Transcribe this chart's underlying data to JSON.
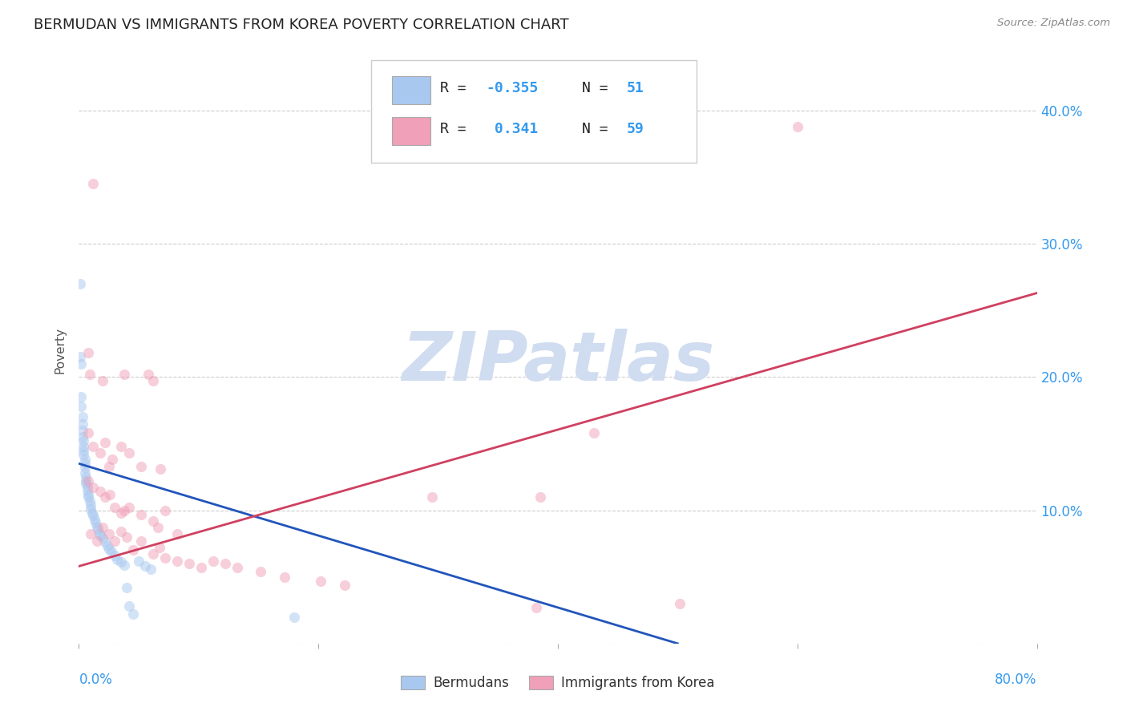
{
  "title": "BERMUDAN VS IMMIGRANTS FROM KOREA POVERTY CORRELATION CHART",
  "source": "Source: ZipAtlas.com",
  "ylabel": "Poverty",
  "ytick_values": [
    0.0,
    0.1,
    0.2,
    0.3,
    0.4
  ],
  "ytick_labels": [
    "",
    "10.0%",
    "20.0%",
    "30.0%",
    "40.0%"
  ],
  "xlim": [
    0.0,
    0.8
  ],
  "ylim": [
    0.0,
    0.44
  ],
  "blue_scatter": [
    [
      0.001,
      0.27
    ],
    [
      0.001,
      0.215
    ],
    [
      0.002,
      0.21
    ],
    [
      0.002,
      0.185
    ],
    [
      0.002,
      0.178
    ],
    [
      0.003,
      0.17
    ],
    [
      0.003,
      0.165
    ],
    [
      0.003,
      0.16
    ],
    [
      0.003,
      0.155
    ],
    [
      0.004,
      0.152
    ],
    [
      0.004,
      0.148
    ],
    [
      0.004,
      0.145
    ],
    [
      0.004,
      0.142
    ],
    [
      0.005,
      0.138
    ],
    [
      0.005,
      0.135
    ],
    [
      0.005,
      0.132
    ],
    [
      0.005,
      0.128
    ],
    [
      0.006,
      0.125
    ],
    [
      0.006,
      0.122
    ],
    [
      0.006,
      0.12
    ],
    [
      0.007,
      0.118
    ],
    [
      0.007,
      0.115
    ],
    [
      0.008,
      0.112
    ],
    [
      0.008,
      0.11
    ],
    [
      0.009,
      0.107
    ],
    [
      0.01,
      0.104
    ],
    [
      0.01,
      0.101
    ],
    [
      0.011,
      0.098
    ],
    [
      0.012,
      0.096
    ],
    [
      0.013,
      0.093
    ],
    [
      0.014,
      0.091
    ],
    [
      0.015,
      0.088
    ],
    [
      0.016,
      0.086
    ],
    [
      0.017,
      0.083
    ],
    [
      0.018,
      0.081
    ],
    [
      0.02,
      0.079
    ],
    [
      0.022,
      0.076
    ],
    [
      0.024,
      0.073
    ],
    [
      0.025,
      0.071
    ],
    [
      0.027,
      0.069
    ],
    [
      0.03,
      0.066
    ],
    [
      0.032,
      0.063
    ],
    [
      0.035,
      0.061
    ],
    [
      0.038,
      0.059
    ],
    [
      0.04,
      0.042
    ],
    [
      0.042,
      0.028
    ],
    [
      0.045,
      0.022
    ],
    [
      0.05,
      0.062
    ],
    [
      0.055,
      0.058
    ],
    [
      0.06,
      0.056
    ],
    [
      0.18,
      0.02
    ]
  ],
  "pink_scatter": [
    [
      0.012,
      0.345
    ],
    [
      0.6,
      0.388
    ],
    [
      0.008,
      0.218
    ],
    [
      0.009,
      0.202
    ],
    [
      0.02,
      0.197
    ],
    [
      0.038,
      0.202
    ],
    [
      0.058,
      0.202
    ],
    [
      0.062,
      0.197
    ],
    [
      0.008,
      0.158
    ],
    [
      0.012,
      0.148
    ],
    [
      0.018,
      0.143
    ],
    [
      0.022,
      0.151
    ],
    [
      0.025,
      0.133
    ],
    [
      0.028,
      0.138
    ],
    [
      0.035,
      0.148
    ],
    [
      0.042,
      0.143
    ],
    [
      0.052,
      0.133
    ],
    [
      0.068,
      0.131
    ],
    [
      0.008,
      0.122
    ],
    [
      0.012,
      0.117
    ],
    [
      0.018,
      0.114
    ],
    [
      0.022,
      0.11
    ],
    [
      0.026,
      0.112
    ],
    [
      0.03,
      0.102
    ],
    [
      0.035,
      0.098
    ],
    [
      0.038,
      0.1
    ],
    [
      0.042,
      0.102
    ],
    [
      0.052,
      0.097
    ],
    [
      0.062,
      0.092
    ],
    [
      0.066,
      0.087
    ],
    [
      0.072,
      0.1
    ],
    [
      0.082,
      0.082
    ],
    [
      0.295,
      0.11
    ],
    [
      0.385,
      0.11
    ],
    [
      0.01,
      0.082
    ],
    [
      0.015,
      0.077
    ],
    [
      0.02,
      0.087
    ],
    [
      0.025,
      0.082
    ],
    [
      0.03,
      0.077
    ],
    [
      0.035,
      0.084
    ],
    [
      0.04,
      0.08
    ],
    [
      0.045,
      0.07
    ],
    [
      0.052,
      0.077
    ],
    [
      0.062,
      0.067
    ],
    [
      0.067,
      0.072
    ],
    [
      0.072,
      0.064
    ],
    [
      0.082,
      0.062
    ],
    [
      0.092,
      0.06
    ],
    [
      0.102,
      0.057
    ],
    [
      0.112,
      0.062
    ],
    [
      0.122,
      0.06
    ],
    [
      0.132,
      0.057
    ],
    [
      0.152,
      0.054
    ],
    [
      0.172,
      0.05
    ],
    [
      0.202,
      0.047
    ],
    [
      0.222,
      0.044
    ],
    [
      0.382,
      0.027
    ],
    [
      0.502,
      0.03
    ],
    [
      0.43,
      0.158
    ]
  ],
  "blue_line_x": [
    0.0,
    0.5
  ],
  "blue_line_y": [
    0.135,
    0.0
  ],
  "pink_line_x": [
    0.0,
    0.8
  ],
  "pink_line_y": [
    0.058,
    0.263
  ],
  "blue_color": "#A8C8F0",
  "pink_color": "#F0A0B8",
  "blue_line_color": "#2255BB",
  "pink_line_color": "#D04060",
  "background_color": "#ffffff",
  "grid_color": "#cccccc",
  "watermark_color": "#D0DCF0",
  "title_fontsize": 13,
  "axis_label_fontsize": 11,
  "tick_fontsize": 12,
  "scatter_size": 90,
  "scatter_alpha": 0.5,
  "legend_blue_label": "R = -0.355   N = 51",
  "legend_pink_label": "R =  0.341   N = 59"
}
